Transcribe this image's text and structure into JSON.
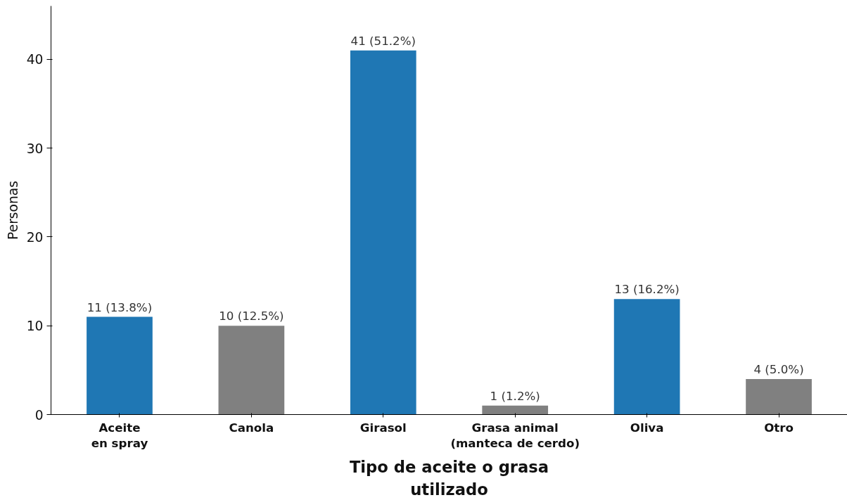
{
  "chart_data": {
    "type": "bar",
    "xlabel": "Tipo de aceite o grasa\nutilizado",
    "ylabel": "Personas",
    "categories": [
      "Aceite\nen spray",
      "Canola",
      "Girasol",
      "Grasa animal\n(manteca de cerdo)",
      "Oliva",
      "Otro"
    ],
    "values": [
      11,
      10,
      41,
      1,
      13,
      4
    ],
    "colors": [
      "#1f77b4",
      "#808080",
      "#1f77b4",
      "#808080",
      "#1f77b4",
      "#808080"
    ],
    "value_labels": [
      "11 (13.8%)",
      "10 (12.5%)",
      "41 (51.2%)",
      "1 (1.2%)",
      "13 (16.2%)",
      "4 (5.0%)"
    ],
    "ylim": [
      0,
      46
    ],
    "yticks": [
      0,
      10,
      20,
      30,
      40
    ],
    "grid": false
  }
}
